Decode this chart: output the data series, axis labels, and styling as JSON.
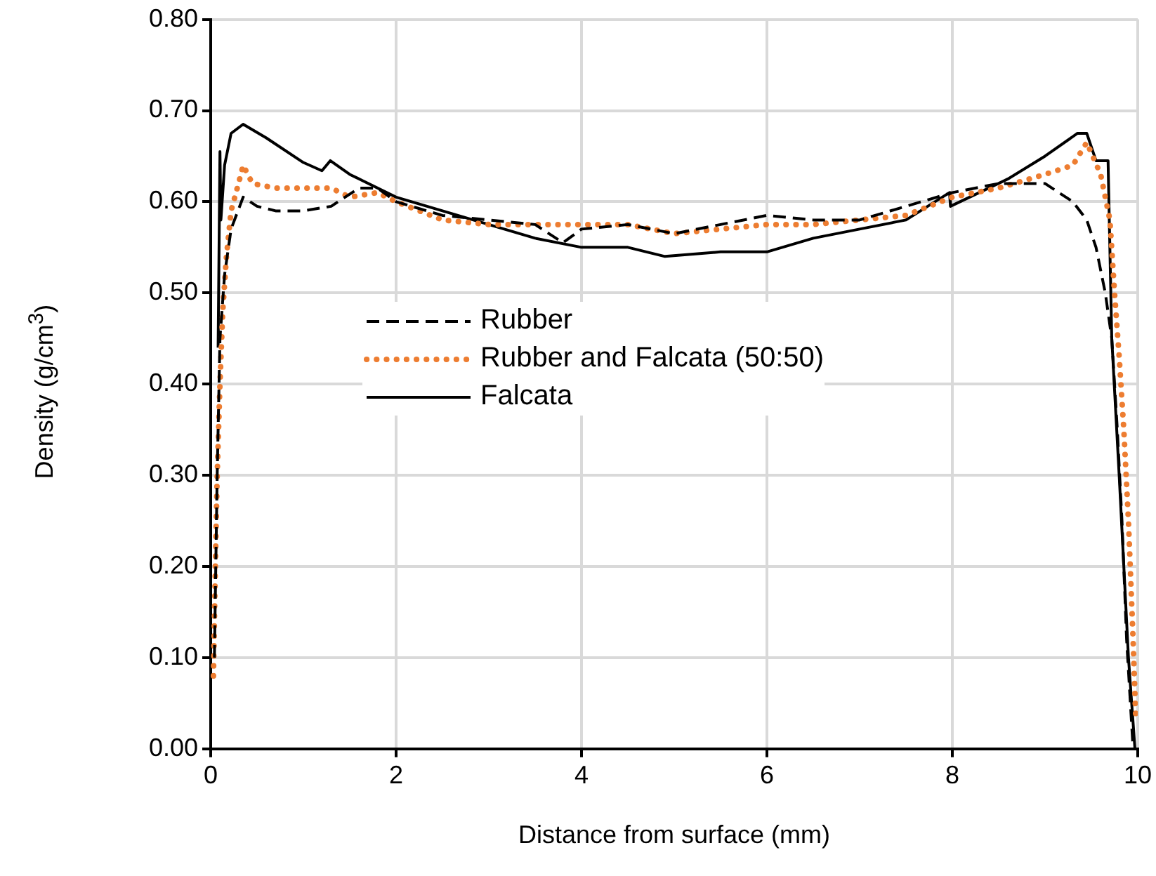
{
  "chart_data": {
    "type": "line",
    "xlabel": "Distance from  surface (mm)",
    "ylabel": "Density (g/cm$^{3}$)",
    "xlim": [
      0,
      10
    ],
    "xticks": [
      0,
      2,
      4,
      6,
      8,
      10
    ],
    "ylim": [
      0,
      0.8
    ],
    "yticks": [
      {
        "value": 0,
        "label": "0.00"
      },
      {
        "value": 0.1,
        "label": "0.10"
      },
      {
        "value": 0.2,
        "label": "0.20"
      },
      {
        "value": 0.3,
        "label": "0.30"
      },
      {
        "value": 0.4,
        "label": "0.40"
      },
      {
        "value": 0.5,
        "label": "0.50"
      },
      {
        "value": 0.6,
        "label": "0.60"
      },
      {
        "value": 0.7,
        "label": "0.70"
      },
      {
        "value": 0.8,
        "label": "0.80"
      }
    ],
    "grid": true,
    "legend": "left",
    "marker": "none",
    "series": [
      {
        "name": "Rubber",
        "color": "#000000",
        "line_style": "dashed",
        "x": [
          0.04,
          0.07,
          0.1,
          0.15,
          0.22,
          0.35,
          0.5,
          0.7,
          1.0,
          1.3,
          1.6,
          1.8,
          2.0,
          2.5,
          3.0,
          3.5,
          3.8,
          4.0,
          4.5,
          5.0,
          5.5,
          6.0,
          6.5,
          7.0,
          7.5,
          8.0,
          8.5,
          9.0,
          9.3,
          9.45,
          9.55,
          9.65,
          9.72,
          9.78,
          9.83,
          9.88,
          9.95
        ],
        "values": [
          0.1,
          0.3,
          0.45,
          0.52,
          0.57,
          0.605,
          0.595,
          0.59,
          0.59,
          0.595,
          0.615,
          0.615,
          0.6,
          0.585,
          0.58,
          0.575,
          0.555,
          0.57,
          0.575,
          0.565,
          0.575,
          0.585,
          0.58,
          0.58,
          0.595,
          0.61,
          0.62,
          0.62,
          0.6,
          0.58,
          0.55,
          0.5,
          0.45,
          0.35,
          0.25,
          0.12,
          0.0
        ]
      },
      {
        "name": "Rubber and Falcata (50:50)",
        "color": "#ed7d31",
        "line_style": "dotted",
        "x": [
          0.03,
          0.05,
          0.07,
          0.1,
          0.13,
          0.17,
          0.22,
          0.3,
          0.35,
          0.45,
          0.7,
          1.0,
          1.3,
          1.5,
          1.8,
          2.0,
          2.5,
          3.0,
          3.5,
          4.0,
          4.5,
          5.0,
          5.5,
          6.0,
          6.5,
          7.0,
          7.5,
          8.0,
          8.5,
          9.0,
          9.3,
          9.45,
          9.6,
          9.7,
          9.75,
          9.8,
          9.85,
          9.9,
          9.95,
          9.98
        ],
        "values": [
          0.08,
          0.2,
          0.3,
          0.4,
          0.48,
          0.54,
          0.59,
          0.62,
          0.64,
          0.62,
          0.615,
          0.615,
          0.615,
          0.605,
          0.61,
          0.6,
          0.58,
          0.575,
          0.575,
          0.575,
          0.575,
          0.565,
          0.57,
          0.575,
          0.575,
          0.58,
          0.585,
          0.605,
          0.615,
          0.63,
          0.64,
          0.665,
          0.63,
          0.58,
          0.5,
          0.43,
          0.35,
          0.25,
          0.12,
          0.03
        ]
      },
      {
        "name": "Falcata",
        "color": "#000000",
        "line_style": "solid",
        "x": [
          0.08,
          0.1,
          0.11,
          0.15,
          0.22,
          0.35,
          0.6,
          1.0,
          1.2,
          1.29,
          1.5,
          2.0,
          2.5,
          3.0,
          3.5,
          4.0,
          4.5,
          4.9,
          5.5,
          6.0,
          6.5,
          7.0,
          7.5,
          7.97,
          7.98,
          8.6,
          9.0,
          9.35,
          9.45,
          9.55,
          9.68,
          9.72,
          9.8,
          9.9,
          9.97
        ],
        "values": [
          0.44,
          0.655,
          0.58,
          0.64,
          0.675,
          0.685,
          0.67,
          0.643,
          0.634,
          0.645,
          0.63,
          0.605,
          0.59,
          0.575,
          0.56,
          0.55,
          0.55,
          0.54,
          0.545,
          0.545,
          0.56,
          0.57,
          0.58,
          0.61,
          0.595,
          0.625,
          0.65,
          0.675,
          0.675,
          0.645,
          0.645,
          0.45,
          0.3,
          0.1,
          0.0
        ]
      }
    ]
  }
}
